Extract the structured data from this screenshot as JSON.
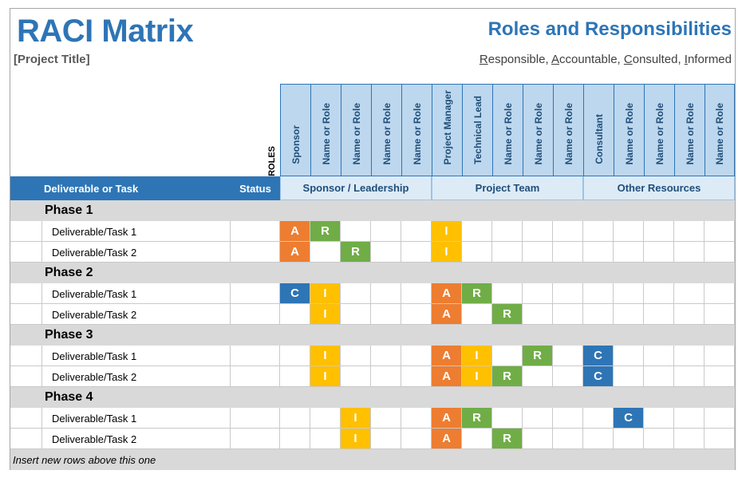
{
  "header": {
    "title": "RACI Matrix",
    "project_title": "[Project Title]",
    "right_title": "Roles and Responsibilities",
    "legend": [
      {
        "initial": "R",
        "rest": "esponsible"
      },
      {
        "initial": "A",
        "rest": "ccountable"
      },
      {
        "initial": "C",
        "rest": "onsulted"
      },
      {
        "initial": "I",
        "rest": "nformed"
      }
    ],
    "legend_separator": ", "
  },
  "roles_label": "ROLES",
  "roles": [
    "Sponsor",
    "Name or Role",
    "Name or Role",
    "Name or Role",
    "Name or Role",
    "Project Manager",
    "Technical Lead",
    "Name or Role",
    "Name or Role",
    "Name or Role",
    "Consultant",
    "Name or Role",
    "Name or Role",
    "Name or Role",
    "Name or Role"
  ],
  "columns": {
    "task": "Deliverable or Task",
    "status": "Status",
    "groups": [
      "Sponsor / Leadership",
      "Project Team",
      "Other Resources"
    ]
  },
  "colors": {
    "A": "#ed7d31",
    "R": "#70ad47",
    "I": "#ffc000",
    "C": "#2e75b6",
    "accent": "#2e75b6"
  },
  "phases": [
    {
      "name": "Phase 1",
      "tasks": [
        {
          "name": "Deliverable/Task 1",
          "status": "",
          "cells": [
            "A",
            "R",
            "",
            "",
            "",
            "I",
            "",
            "",
            "",
            "",
            "",
            "",
            "",
            "",
            ""
          ]
        },
        {
          "name": "Deliverable/Task 2",
          "status": "",
          "cells": [
            "A",
            "",
            "R",
            "",
            "",
            "I",
            "",
            "",
            "",
            "",
            "",
            "",
            "",
            "",
            ""
          ]
        }
      ]
    },
    {
      "name": "Phase 2",
      "tasks": [
        {
          "name": "Deliverable/Task 1",
          "status": "",
          "cells": [
            "C",
            "I",
            "",
            "",
            "",
            "A",
            "R",
            "",
            "",
            "",
            "",
            "",
            "",
            "",
            ""
          ]
        },
        {
          "name": "Deliverable/Task 2",
          "status": "",
          "cells": [
            "",
            "I",
            "",
            "",
            "",
            "A",
            "",
            "R",
            "",
            "",
            "",
            "",
            "",
            "",
            ""
          ]
        }
      ]
    },
    {
      "name": "Phase 3",
      "tasks": [
        {
          "name": "Deliverable/Task 1",
          "status": "",
          "cells": [
            "",
            "I",
            "",
            "",
            "",
            "A",
            "I",
            "",
            "R",
            "",
            "C",
            "",
            "",
            "",
            ""
          ]
        },
        {
          "name": "Deliverable/Task 2",
          "status": "",
          "cells": [
            "",
            "I",
            "",
            "",
            "",
            "A",
            "I",
            "R",
            "",
            "",
            "C",
            "",
            "",
            "",
            ""
          ]
        }
      ]
    },
    {
      "name": "Phase 4",
      "tasks": [
        {
          "name": "Deliverable/Task 1",
          "status": "",
          "cells": [
            "",
            "",
            "I",
            "",
            "",
            "A",
            "R",
            "",
            "",
            "",
            "",
            "C",
            "",
            "",
            ""
          ]
        },
        {
          "name": "Deliverable/Task 2",
          "status": "",
          "cells": [
            "",
            "",
            "I",
            "",
            "",
            "A",
            "",
            "R",
            "",
            "",
            "",
            "",
            "",
            "",
            ""
          ]
        }
      ]
    }
  ],
  "footer": "Insert new rows above this one"
}
